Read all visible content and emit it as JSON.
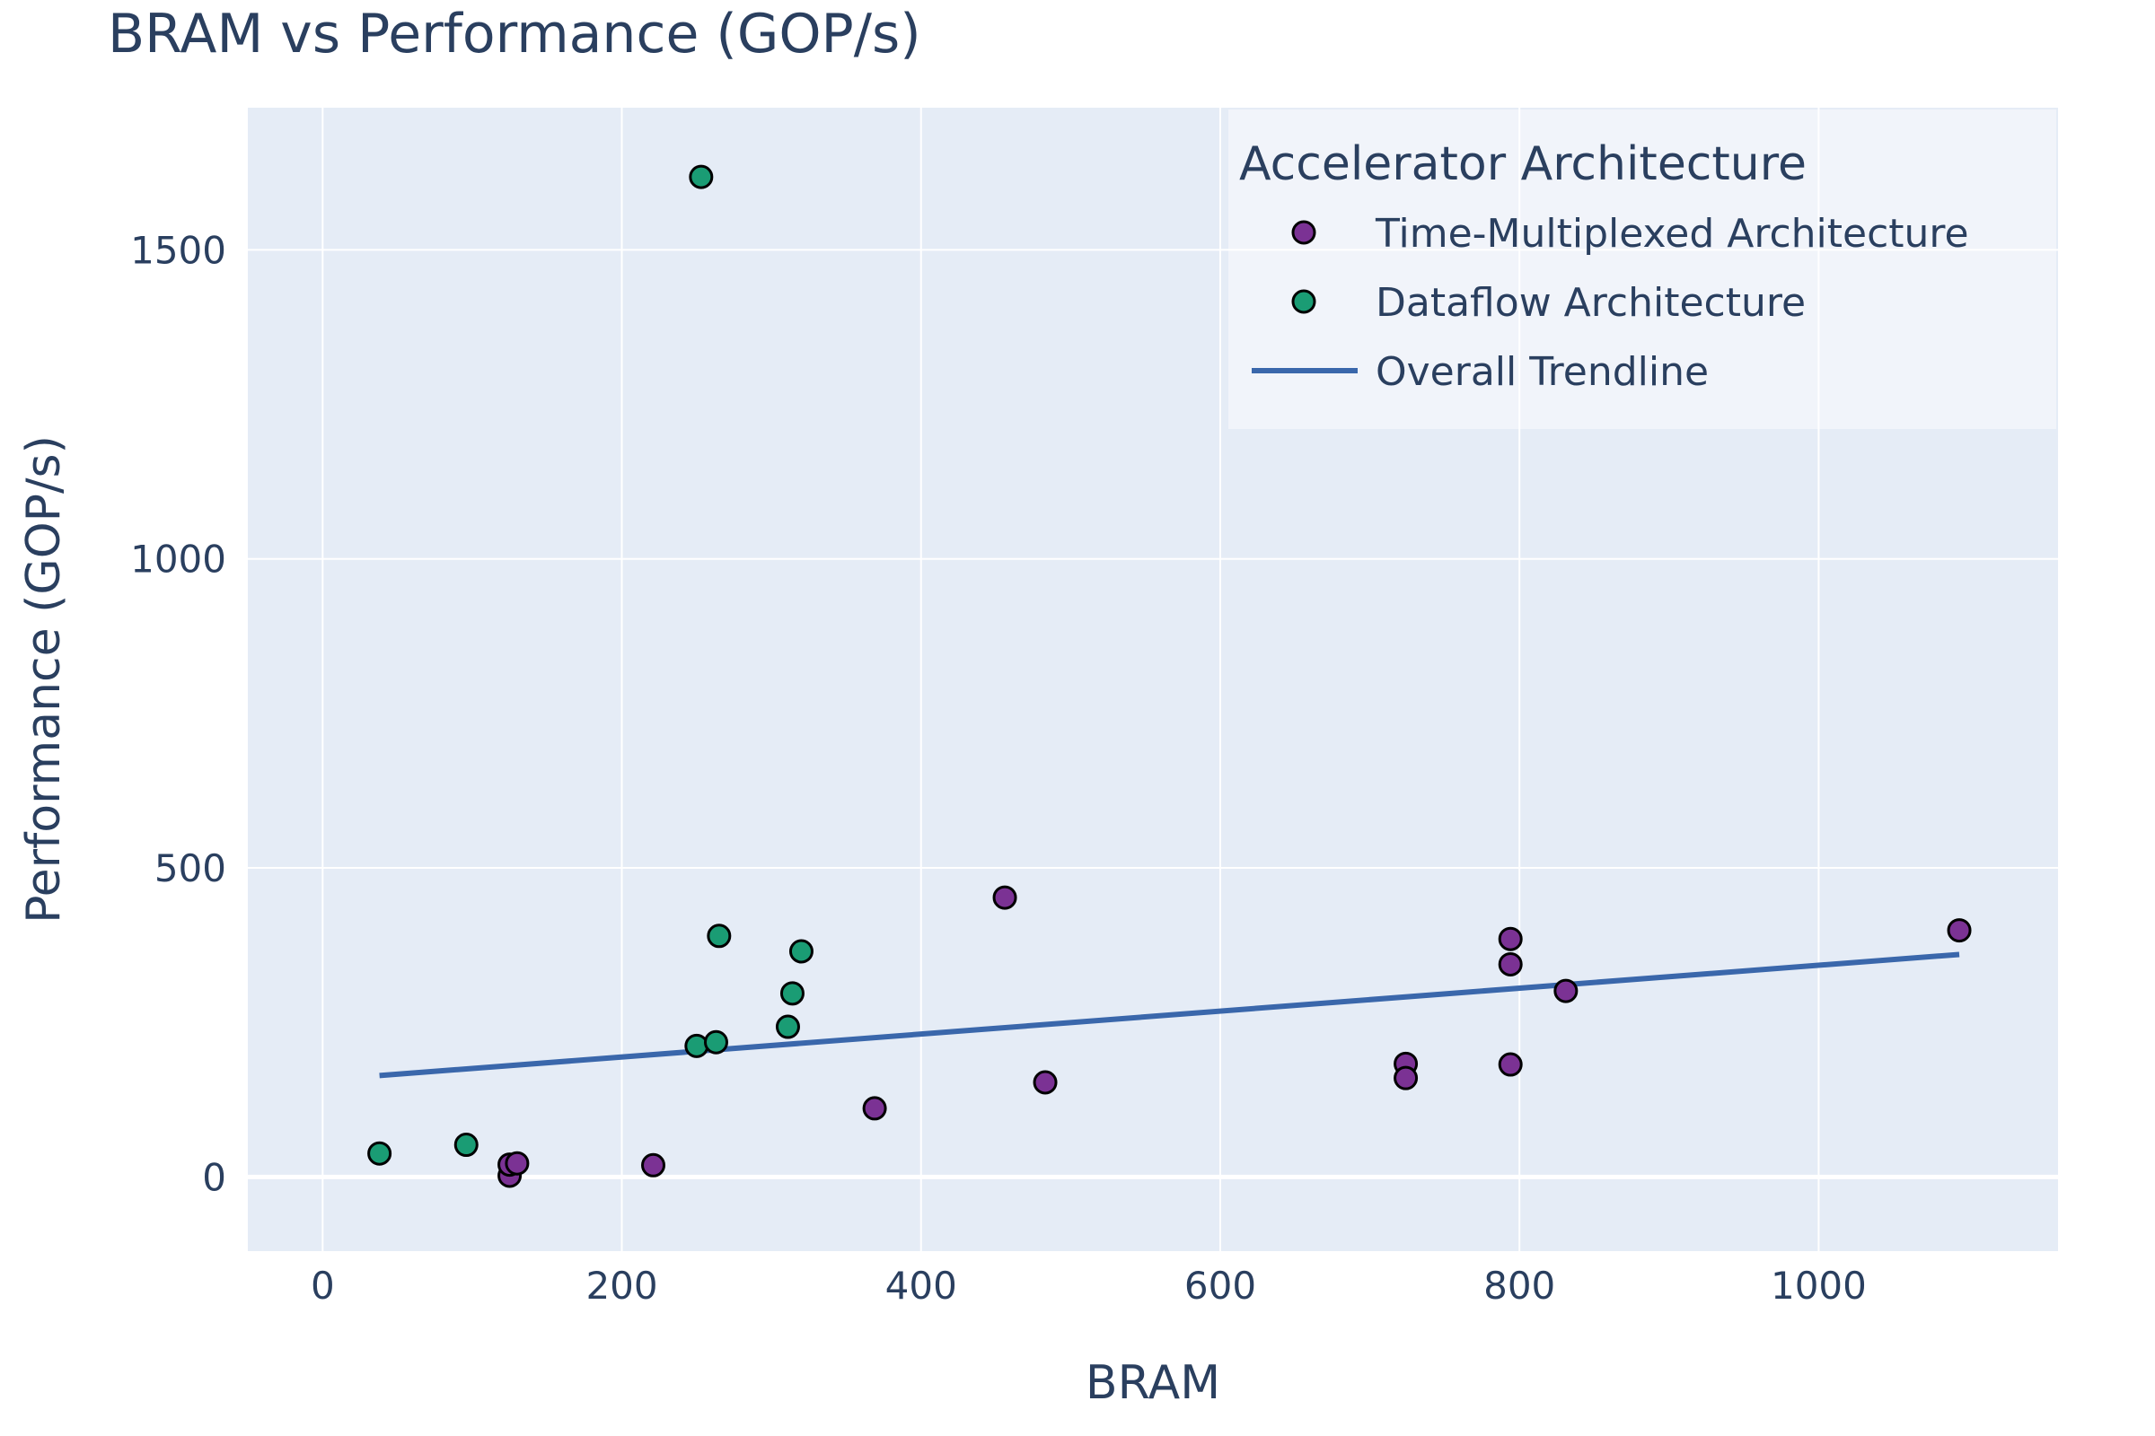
{
  "chart_data": {
    "type": "scatter",
    "title": "BRAM vs Performance (GOP/s)",
    "xlabel": "BRAM",
    "ylabel": "Performance (GOP/s)",
    "xlim": [
      -50,
      1160
    ],
    "ylim": [
      -120,
      1730
    ],
    "xticks": [
      0,
      200,
      400,
      600,
      800,
      1000
    ],
    "yticks": [
      0,
      500,
      1000,
      1500
    ],
    "grid": true,
    "legend": {
      "title": "Accelerator Architecture",
      "placement": "top-right"
    },
    "series": [
      {
        "name": "Time-Multiplexed Architecture",
        "color": "#7b3294",
        "marker": "circle",
        "points": [
          {
            "x": 125,
            "y": 2
          },
          {
            "x": 125,
            "y": 20
          },
          {
            "x": 130,
            "y": 22
          },
          {
            "x": 221,
            "y": 19
          },
          {
            "x": 369,
            "y": 111
          },
          {
            "x": 456,
            "y": 452
          },
          {
            "x": 483,
            "y": 153
          },
          {
            "x": 724,
            "y": 183
          },
          {
            "x": 724,
            "y": 160
          },
          {
            "x": 794,
            "y": 385
          },
          {
            "x": 794,
            "y": 344
          },
          {
            "x": 794,
            "y": 182
          },
          {
            "x": 831,
            "y": 301
          },
          {
            "x": 1094,
            "y": 399
          }
        ]
      },
      {
        "name": "Dataflow Architecture",
        "color": "#1a9c74",
        "marker": "circle",
        "points": [
          {
            "x": 38,
            "y": 38
          },
          {
            "x": 96,
            "y": 52
          },
          {
            "x": 250,
            "y": 212
          },
          {
            "x": 253,
            "y": 1618
          },
          {
            "x": 263,
            "y": 218
          },
          {
            "x": 265,
            "y": 390
          },
          {
            "x": 311,
            "y": 243
          },
          {
            "x": 314,
            "y": 297
          },
          {
            "x": 320,
            "y": 365
          }
        ]
      },
      {
        "name": "Overall Trendline",
        "color": "#3a67ab",
        "marker": "line",
        "points": [
          {
            "x": 38,
            "y": 164
          },
          {
            "x": 1094,
            "y": 360
          }
        ]
      }
    ]
  }
}
